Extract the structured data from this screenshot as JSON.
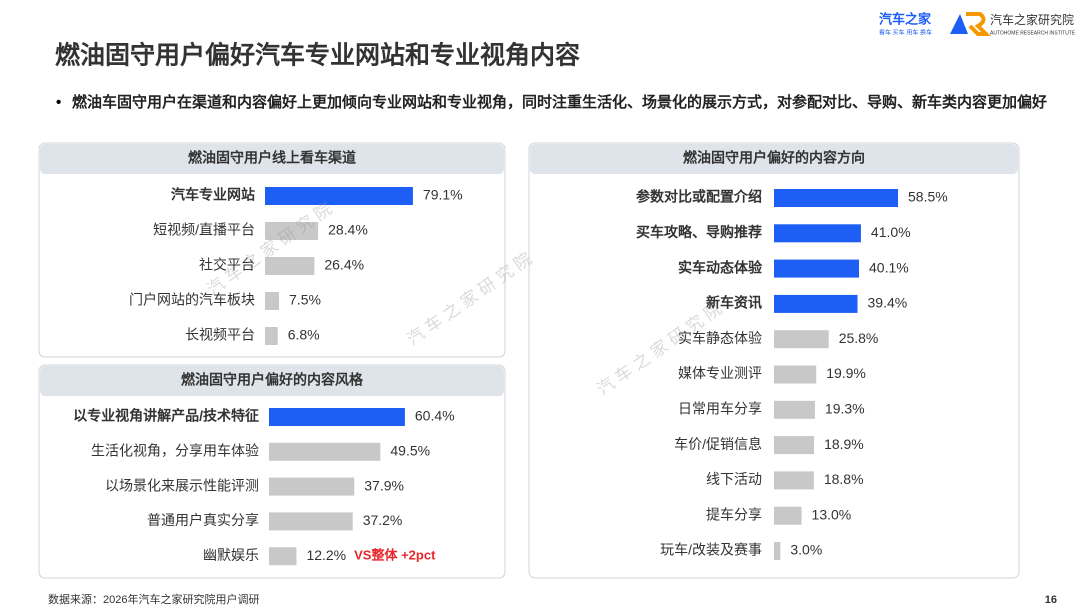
{
  "title": "燃油固守用户偏好汽车专业网站和专业视角内容",
  "bullet": "燃油车固守用户在渠道和内容偏好上更加倾向专业网站和专业视角，同时注重生活化、场景化的展示方式，对参配对比、导购、新车类内容更加偏好",
  "brand": "汽车之家",
  "brand_tagline": "看车 买车 用车 换车",
  "institute": "汽车之家研究院",
  "institute_en": "AUTOHOME RESEARCH INSTITUTE",
  "watermark": "汽 车 之 家 研 究 院",
  "source": "数据来源：2026年汽车之家研究院用户调研",
  "page_number": "16",
  "chart_data": [
    {
      "type": "bar",
      "orientation": "horizontal",
      "title": "燃油固守用户线上看车渠道",
      "categories": [
        "汽车专业网站",
        "短视频/直播平台",
        "社交平台",
        "门户网站的汽车板块",
        "长视频平台"
      ],
      "values": [
        79.1,
        28.4,
        26.4,
        7.5,
        6.8
      ],
      "value_labels": [
        "79.1%",
        "28.4%",
        "26.4%",
        "7.5%",
        "6.8%"
      ],
      "color": "#c8c8c8",
      "highlight_color": "#1d5ef5",
      "highlight_count": 1
    },
    {
      "type": "bar",
      "orientation": "horizontal",
      "title": "燃油固守用户偏好的内容风格",
      "categories": [
        "以专业视角讲解产品/技术特征",
        "生活化视角，分享用车体验",
        "以场景化来展示性能评测",
        "普通用户真实分享",
        "幽默娱乐"
      ],
      "values": [
        60.4,
        49.5,
        37.9,
        37.2,
        12.2
      ],
      "value_labels": [
        "60.4%",
        "49.5%",
        "37.9%",
        "37.2%",
        "12.2%"
      ],
      "annotation": "VS整体 +2pct",
      "annotation_color": "#e8262b",
      "color": "#c8c8c8",
      "highlight_color": "#1d5ef5",
      "highlight_count": 1
    },
    {
      "type": "bar",
      "orientation": "horizontal",
      "title": "燃油固守用户偏好的内容方向",
      "categories": [
        "参数对比或配置介绍",
        "买车攻略、导购推荐",
        "实车动态体验",
        "新车资讯",
        "实车静态体验",
        "媒体专业测评",
        "日常用车分享",
        "车价/促销信息",
        "线下活动",
        "提车分享",
        "玩车/改装及赛事"
      ],
      "values": [
        58.5,
        41.0,
        40.1,
        39.4,
        25.8,
        19.9,
        19.3,
        18.9,
        18.8,
        13.0,
        3.0
      ],
      "value_labels": [
        "58.5%",
        "41.0%",
        "40.1%",
        "39.4%",
        "25.8%",
        "19.9%",
        "19.3%",
        "18.9%",
        "18.8%",
        "13.0%",
        "3.0%"
      ],
      "color": "#c8c8c8",
      "highlight_color": "#1d5ef5",
      "highlight_count": 4
    }
  ]
}
